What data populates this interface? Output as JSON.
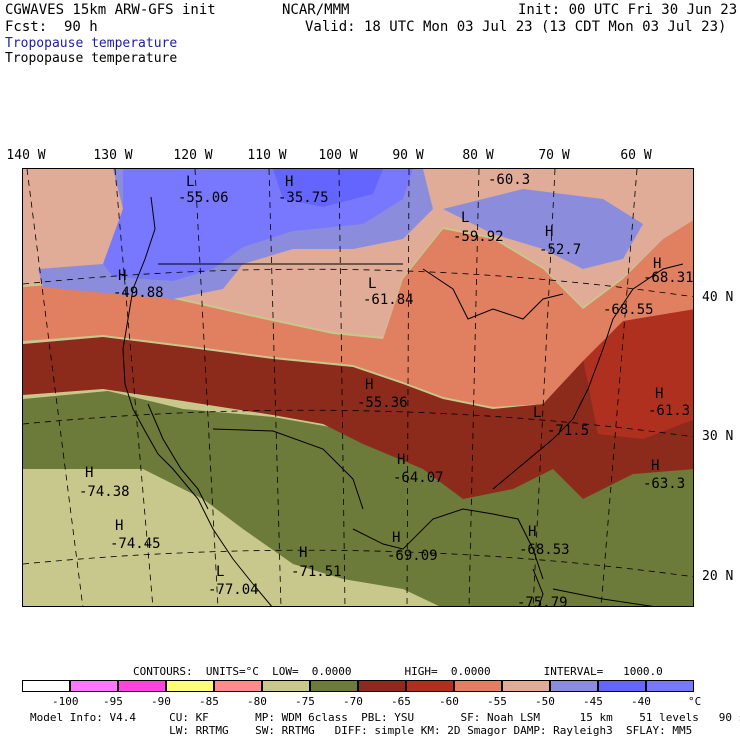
{
  "header": {
    "model": "CGWAVES 15km ARW-GFS init",
    "org": "NCAR/MMM",
    "init": "Init: 00 UTC Fri 30 Jun 23",
    "fcst_label": "Fcst:",
    "fcst_value": "90 h",
    "valid": "Valid: 18 UTC Mon 03 Jul 23 (13 CDT Mon 03 Jul 23)",
    "field_blue": "Tropopause temperature",
    "field_black": "Tropopause temperature"
  },
  "lon_labels": [
    "140 W",
    "130 W",
    "120 W",
    "110 W",
    "100 W",
    "90 W",
    "80 W",
    "70 W",
    "60 W"
  ],
  "lat_labels": [
    "40 N",
    "30 N",
    "20 N"
  ],
  "map_labels": [
    {
      "value": "-55.06",
      "type": "L"
    },
    {
      "value": "-35.75",
      "type": "H"
    },
    {
      "value": "-60.3",
      "type": "L"
    },
    {
      "value": "-59.92",
      "type": "L"
    },
    {
      "value": "-52.7",
      "type": "H"
    },
    {
      "value": "-68.31",
      "type": "H"
    },
    {
      "value": "-49.88",
      "type": "H"
    },
    {
      "value": "-61.84",
      "type": "L"
    },
    {
      "value": "-68.55",
      "type": "H"
    },
    {
      "value": "-55.36",
      "type": "H"
    },
    {
      "value": "-61.3",
      "type": "H"
    },
    {
      "value": "-71.5",
      "type": "L"
    },
    {
      "value": "-64.07",
      "type": "H"
    },
    {
      "value": "-63.3",
      "type": "H"
    },
    {
      "value": "-74.38",
      "type": "H"
    },
    {
      "value": "-74.45",
      "type": "H"
    },
    {
      "value": "-71.51",
      "type": "H"
    },
    {
      "value": "-69.09",
      "type": "H"
    },
    {
      "value": "-68.53",
      "type": "H"
    },
    {
      "value": "-77.04",
      "type": "L"
    },
    {
      "value": "-75.79",
      "type": "L"
    }
  ],
  "contours_line": "CONTOURS:  UNITS=°C  LOW=  0.0000        HIGH=  0.0000        INTERVAL=   1000.0",
  "colorbar": {
    "colors": [
      "#ffffff",
      "#ff78ff",
      "#ff44dc",
      "#ffff78",
      "#ff8c8c",
      "#c8c88c",
      "#6c7a3a",
      "#8c2a1c",
      "#b03020",
      "#e08060",
      "#e0ac98",
      "#8c8cdc",
      "#6464ff",
      "#7878ff"
    ],
    "labels": [
      "-100",
      "-95",
      "-90",
      "-85",
      "-80",
      "-75",
      "-70",
      "-65",
      "-60",
      "-55",
      "-50",
      "-45",
      "-40"
    ],
    "unit": "°C"
  },
  "footer": {
    "line1": "Model Info: V4.4     CU: KF       MP: WDM 6class  PBL: YSU       SF: Noah LSM      15 km    51 levels   90 sec",
    "line2": "                     LW: RRTMG    SW: RRTMG   DIFF: simple KM: 2D Smagor DAMP: Rayleigh3  SFLAY: MM5"
  },
  "map_colors": {
    "tan": "#c8c88c",
    "olive": "#6c7a3a",
    "darkred": "#8c2a1c",
    "red": "#b03020",
    "orange": "#e08060",
    "pink": "#e0ac98",
    "lavender": "#8c8cdc",
    "blue": "#7878ff",
    "brightblue": "#6464ff"
  }
}
